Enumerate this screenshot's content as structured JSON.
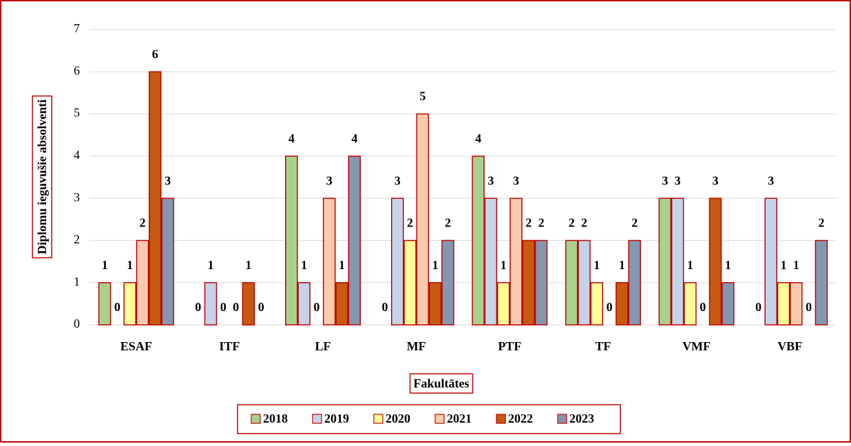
{
  "chart_data": {
    "type": "bar",
    "ylabel": "Diplomu ieguvušie absolventi",
    "xlabel": "Fakultātes",
    "categories": [
      "ESAF",
      "ITF",
      "LF",
      "MF",
      "PTF",
      "TF",
      "VMF",
      "VBF"
    ],
    "series": [
      {
        "name": "2018",
        "color": "#a9d18e",
        "values": [
          1,
          0,
          4,
          0,
          4,
          2,
          3,
          0
        ]
      },
      {
        "name": "2019",
        "color": "#c5d3ea",
        "values": [
          0,
          1,
          1,
          3,
          3,
          2,
          3,
          3
        ]
      },
      {
        "name": "2020",
        "color": "#ffff99",
        "values": [
          1,
          0,
          0,
          2,
          1,
          1,
          1,
          1
        ]
      },
      {
        "name": "2021",
        "color": "#f8cbad",
        "values": [
          2,
          0,
          3,
          5,
          3,
          0,
          0,
          1
        ]
      },
      {
        "name": "2022",
        "color": "#c55a11",
        "values": [
          6,
          1,
          1,
          1,
          2,
          1,
          3,
          0
        ]
      },
      {
        "name": "2023",
        "color": "#8497b0",
        "values": [
          3,
          0,
          4,
          2,
          2,
          2,
          1,
          2
        ]
      }
    ],
    "ylim": [
      0,
      7
    ],
    "yticks": [
      0,
      1,
      2,
      3,
      4,
      5,
      6,
      7
    ],
    "grid": true,
    "legend": "bottom"
  }
}
